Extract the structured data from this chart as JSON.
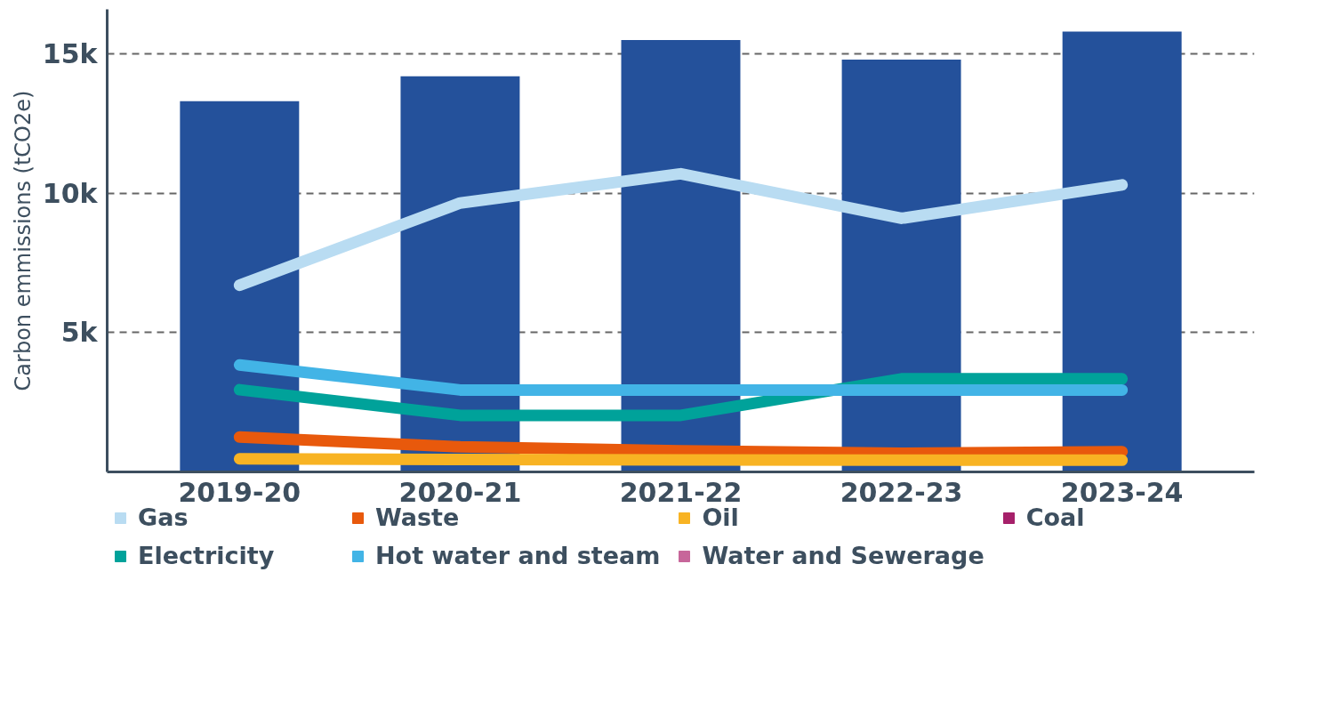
{
  "chart_data": {
    "type": "line",
    "ylabel": "Carbon emmissions (tCO2e)",
    "categories": [
      "2019-20",
      "2020-21",
      "2021-22",
      "2022-23",
      "2023-24"
    ],
    "series": [
      {
        "type": "bar",
        "color": "#24519b",
        "values": [
          13300,
          14200,
          15500,
          14800,
          15800
        ]
      },
      {
        "name": "Gas",
        "color": "#b9dcf2",
        "values": [
          6700,
          9650,
          10700,
          9100,
          10300
        ]
      },
      {
        "name": "Waste",
        "color": "#e8590c",
        "values": [
          1250,
          900,
          760,
          670,
          730
        ]
      },
      {
        "name": "Oil",
        "color": "#f8b323",
        "values": [
          470,
          450,
          430,
          420,
          420
        ]
      },
      {
        "name": "Coal",
        "color": "#a6206a",
        "values": [
          null,
          null,
          null,
          null,
          null
        ]
      },
      {
        "name": "Electricity",
        "color": "#00a29a",
        "values": [
          2950,
          2030,
          2030,
          3340,
          3340
        ]
      },
      {
        "name": "Hot water and steam",
        "color": "#42b4e6",
        "values": [
          3840,
          2940,
          2940,
          2940,
          2940
        ]
      },
      {
        "name": "Water and Sewerage",
        "color": "#c7669a",
        "values": [
          null,
          null,
          null,
          null,
          null
        ]
      }
    ],
    "ylim": [
      0,
      16600
    ],
    "yticks": [
      {
        "value": 5000,
        "label": "5k"
      },
      {
        "value": 10000,
        "label": "10k"
      },
      {
        "value": 15000,
        "label": "15k"
      }
    ],
    "grid": "y",
    "legend": "bottom",
    "line_style": "solid",
    "marker": "none"
  }
}
